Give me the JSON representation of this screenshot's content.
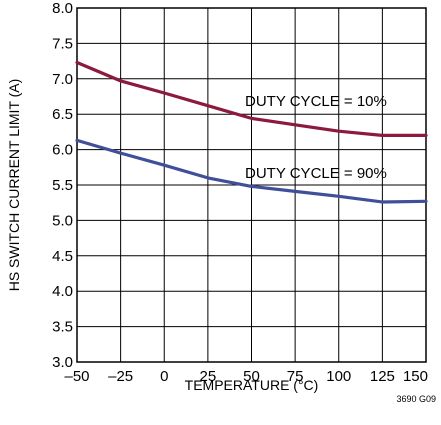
{
  "chart_data": {
    "type": "line",
    "title": "",
    "xlabel": "TEMPERATURE (°C)",
    "ylabel": "HS SWITCH CURRENT LIMIT (A)",
    "xlim": [
      -50,
      150
    ],
    "ylim": [
      3.0,
      8.0
    ],
    "xticks": [
      -50,
      -25,
      0,
      25,
      50,
      75,
      100,
      125,
      150
    ],
    "xtick_labels": [
      "–50",
      "–25",
      "0",
      "25",
      "50",
      "75",
      "100",
      "125",
      "150"
    ],
    "yticks": [
      3.0,
      3.5,
      4.0,
      4.5,
      5.0,
      5.5,
      6.0,
      6.5,
      7.0,
      7.5,
      8.0
    ],
    "ytick_labels": [
      "3.0",
      "3.5",
      "4.0",
      "4.5",
      "5.0",
      "5.5",
      "6.0",
      "6.5",
      "7.0",
      "7.5",
      "8.0"
    ],
    "grid": true,
    "series": [
      {
        "label": "DUTY CYCLE = 10%",
        "color": "#8b1a3c",
        "x": [
          -50,
          -25,
          0,
          25,
          50,
          75,
          100,
          125,
          150
        ],
        "y": [
          7.23,
          6.97,
          6.8,
          6.62,
          6.44,
          6.35,
          6.26,
          6.2,
          6.2
        ]
      },
      {
        "label": "DUTY CYCLE = 90%",
        "color": "#3f4f9a",
        "x": [
          -50,
          -25,
          0,
          25,
          50,
          75,
          100,
          125,
          150
        ],
        "y": [
          6.13,
          5.95,
          5.78,
          5.6,
          5.48,
          5.41,
          5.34,
          5.26,
          5.27
        ]
      }
    ],
    "figure_code": "3690 G09"
  }
}
